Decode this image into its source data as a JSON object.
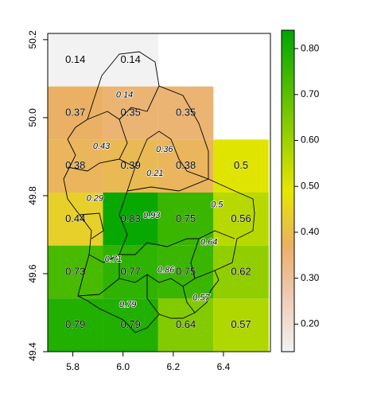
{
  "chart_data": {
    "type": "raster",
    "xlim": [
      5.7,
      6.587
    ],
    "ylim": [
      49.4,
      50.216
    ],
    "xticks": [
      5.8,
      {
        "value": 6,
        "label": "6.0"
      },
      6.2,
      6.4
    ],
    "yticks": [
      49.4,
      49.6,
      49.8,
      {
        "value": 50,
        "label": "50.0"
      },
      50.2
    ],
    "x_edges": [
      5.7,
      5.92,
      6.14,
      6.36,
      6.58
    ],
    "y_edges": [
      50.216,
      50.08,
      49.944,
      49.808,
      49.672,
      49.536,
      49.4
    ],
    "values": [
      [
        0.14,
        0.14,
        null,
        null
      ],
      [
        0.37,
        0.35,
        0.35,
        null
      ],
      [
        0.38,
        0.39,
        0.38,
        0.5
      ],
      [
        0.44,
        0.83,
        0.75,
        0.56
      ],
      [
        0.73,
        0.77,
        0.75,
        0.62
      ],
      [
        0.79,
        0.79,
        0.64,
        0.57
      ]
    ],
    "points": {
      "color": "#ff0000",
      "x": [
        6.006,
        5.914,
        6.165,
        6.127,
        5.888,
        6.114,
        6.374,
        6.342,
        5.961,
        6.171,
        6.311,
        6.019
      ],
      "y": [
        50.058,
        49.926,
        49.918,
        49.857,
        49.792,
        49.749,
        49.776,
        49.68,
        49.636,
        49.609,
        49.538,
        49.52
      ],
      "values": [
        0.14,
        0.43,
        0.36,
        0.21,
        0.29,
        0.93,
        0.5,
        0.64,
        0.71,
        0.86,
        0.57,
        0.79
      ]
    },
    "zlim": [
      0.14,
      0.84
    ],
    "zticks": [
      {
        "value": 0.2,
        "label": "0.20"
      },
      {
        "value": 0.3,
        "label": "0.30"
      },
      {
        "value": 0.4,
        "label": "0.40"
      },
      {
        "value": 0.5,
        "label": "0.50"
      },
      {
        "value": 0.6,
        "label": "0.60"
      },
      {
        "value": 0.7,
        "label": "0.70"
      },
      {
        "value": 0.8,
        "label": "0.80"
      }
    ],
    "colorscale": [
      {
        "value": 0.14,
        "color": "#f2f2f2"
      },
      {
        "value": 0.28,
        "color": "#eec4a8"
      },
      {
        "value": 0.37,
        "color": "#eab064"
      },
      {
        "value": 0.49,
        "color": "#e6e600"
      },
      {
        "value": 0.84,
        "color": "#00a600"
      }
    ]
  }
}
